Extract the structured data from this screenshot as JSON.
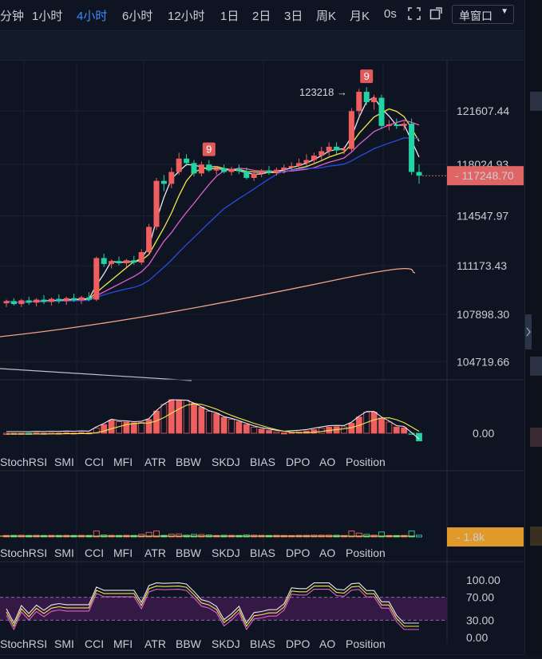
{
  "toolbar": {
    "timeframes": [
      "分钟",
      "1小时",
      "4小时",
      "6小时",
      "12小时",
      "1日",
      "2日",
      "3日",
      "周K",
      "月K",
      "0s"
    ],
    "active_timeframe": "4小时",
    "window_mode": "单窗口"
  },
  "main_chart": {
    "price_ticks": [
      "121607.44",
      "118024.93",
      "114547.97",
      "111173.43",
      "107898.30",
      "104719.66"
    ],
    "current_price": "117248.70",
    "current_price_color": "#e06666",
    "high_annotation": "123218 →",
    "td_markers": [
      {
        "index": 27,
        "label": "9"
      },
      {
        "index": 48,
        "label": "9"
      }
    ],
    "up_color": "#ef5f5f",
    "down_color": "#22d3a3"
  },
  "chart_data": {
    "type": "candlestick",
    "yrange": [
      103500,
      125000
    ],
    "candles": [
      [
        108650,
        108900,
        108400,
        108800
      ],
      [
        108800,
        109000,
        108500,
        108600
      ],
      [
        108600,
        108950,
        108400,
        108850
      ],
      [
        108850,
        109100,
        108550,
        108700
      ],
      [
        108700,
        109000,
        108450,
        108900
      ],
      [
        108900,
        109200,
        108600,
        108750
      ],
      [
        108750,
        109050,
        108500,
        108950
      ],
      [
        108950,
        109250,
        108650,
        108800
      ],
      [
        108800,
        109100,
        108550,
        109000
      ],
      [
        109000,
        109300,
        108750,
        108850
      ],
      [
        108850,
        109150,
        108600,
        109050
      ],
      [
        109050,
        109400,
        108800,
        108900
      ],
      [
        108900,
        111800,
        108800,
        111700
      ],
      [
        111700,
        112000,
        111100,
        111300
      ],
      [
        111300,
        111600,
        111000,
        111500
      ],
      [
        111500,
        111800,
        111200,
        111350
      ],
      [
        111350,
        111650,
        111100,
        111550
      ],
      [
        111550,
        111850,
        111250,
        111400
      ],
      [
        111400,
        112300,
        111250,
        112100
      ],
      [
        112100,
        114000,
        111950,
        113800
      ],
      [
        113800,
        117100,
        113600,
        116900
      ],
      [
        116900,
        117300,
        116200,
        116700
      ],
      [
        116700,
        117800,
        116400,
        117500
      ],
      [
        117500,
        118800,
        117300,
        118400
      ],
      [
        118400,
        118700,
        117900,
        118100
      ],
      [
        118100,
        118300,
        117200,
        117400
      ],
      [
        117400,
        118200,
        117200,
        118000
      ],
      [
        118000,
        118300,
        117500,
        117600
      ],
      [
        117600,
        117900,
        117300,
        117750
      ],
      [
        117750,
        118000,
        117400,
        117500
      ],
      [
        117500,
        117850,
        117250,
        117700
      ],
      [
        117700,
        118000,
        117350,
        117550
      ],
      [
        117550,
        117800,
        117000,
        117100
      ],
      [
        117100,
        117600,
        116900,
        117400
      ],
      [
        117400,
        117700,
        117150,
        117600
      ],
      [
        117600,
        117900,
        117300,
        117450
      ],
      [
        117450,
        117800,
        117250,
        117650
      ],
      [
        117650,
        118000,
        117400,
        117800
      ],
      [
        117800,
        118150,
        117550,
        117900
      ],
      [
        117900,
        118400,
        117700,
        118100
      ],
      [
        118100,
        118700,
        117900,
        118300
      ],
      [
        118300,
        118800,
        118000,
        118600
      ],
      [
        118600,
        119200,
        118300,
        118900
      ],
      [
        118900,
        119500,
        118600,
        119200
      ],
      [
        119200,
        119500,
        118700,
        118950
      ],
      [
        118950,
        119200,
        118700,
        119050
      ],
      [
        119050,
        121800,
        118900,
        121600
      ],
      [
        121600,
        123100,
        121300,
        122900
      ],
      [
        122900,
        123218,
        122000,
        122200
      ],
      [
        122200,
        122700,
        121700,
        122500
      ],
      [
        122500,
        122700,
        120400,
        120600
      ],
      [
        120600,
        121000,
        120300,
        120700
      ],
      [
        120700,
        121100,
        120400,
        120600
      ],
      [
        120600,
        120900,
        120300,
        120750
      ],
      [
        120750,
        121100,
        117300,
        117500
      ],
      [
        117500,
        118000,
        116700,
        117248.7
      ]
    ]
  },
  "indicator_tabs": [
    "StochRSI",
    "SMI",
    "CCI",
    "MFI",
    "ATR",
    "BBW",
    "SKDJ",
    "BIAS",
    "DPO",
    "AO",
    "Position"
  ],
  "panel1": {
    "ticks": [
      "0.00"
    ]
  },
  "panel2": {
    "ticks": [
      "1.8k"
    ],
    "badge_color": "#e09a2a"
  },
  "panel3": {
    "ticks": [
      "100.00",
      "70.00",
      "30.00",
      "0.00"
    ]
  }
}
